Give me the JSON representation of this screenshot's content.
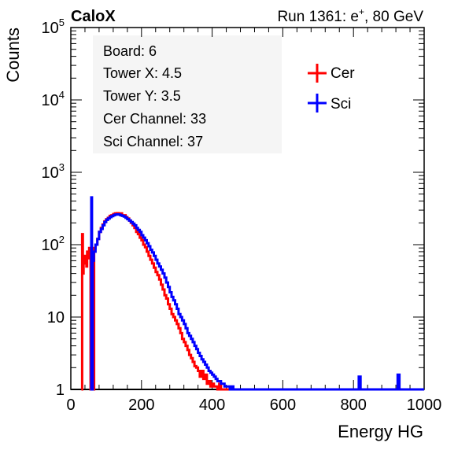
{
  "header": {
    "experiment": "CaloX",
    "run_prefix": "Run 1361: e",
    "run_superscript": "+",
    "run_suffix": ", 80 GeV"
  },
  "info_box": {
    "lines": [
      "Board: 6",
      "Tower X: 4.5",
      "Tower Y: 3.5",
      "Cer Channel: 33",
      "Sci Channel: 37"
    ]
  },
  "legend": {
    "entries": [
      {
        "label": "Cer",
        "color": "#ff0000"
      },
      {
        "label": "Sci",
        "color": "#0000ff"
      }
    ]
  },
  "chart_data": {
    "type": "line",
    "xlabel": "Energy HG",
    "ylabel": "Counts",
    "xlim": [
      0,
      1000
    ],
    "ylim": [
      1,
      100000
    ],
    "yscale": "log",
    "x_ticks": [
      0,
      200,
      400,
      600,
      800,
      1000
    ],
    "y_ticks": [
      {
        "value": 1,
        "base": "1",
        "exp": ""
      },
      {
        "value": 10,
        "base": "10",
        "exp": ""
      },
      {
        "value": 100,
        "base": "10",
        "exp": "2"
      },
      {
        "value": 1000,
        "base": "10",
        "exp": "3"
      },
      {
        "value": 10000,
        "base": "10",
        "exp": "4"
      },
      {
        "value": 100000,
        "base": "10",
        "exp": "5"
      }
    ],
    "series": [
      {
        "name": "Cer",
        "color": "#ff0000",
        "points": [
          [
            30,
            1
          ],
          [
            31,
            1
          ],
          [
            32,
            140
          ],
          [
            34,
            40
          ],
          [
            36,
            60
          ],
          [
            38,
            55
          ],
          [
            40,
            70
          ],
          [
            42,
            60
          ],
          [
            44,
            50
          ],
          [
            46,
            80
          ],
          [
            48,
            65
          ],
          [
            50,
            75
          ],
          [
            52,
            90
          ],
          [
            54,
            70
          ],
          [
            56,
            1
          ],
          [
            58,
            1
          ],
          [
            60,
            1
          ],
          [
            62,
            1
          ],
          [
            64,
            1
          ],
          [
            66,
            90
          ],
          [
            70,
            100
          ],
          [
            75,
            120
          ],
          [
            80,
            150
          ],
          [
            85,
            170
          ],
          [
            90,
            190
          ],
          [
            95,
            210
          ],
          [
            100,
            225
          ],
          [
            105,
            235
          ],
          [
            110,
            250
          ],
          [
            115,
            255
          ],
          [
            120,
            265
          ],
          [
            125,
            270
          ],
          [
            130,
            272
          ],
          [
            135,
            265
          ],
          [
            140,
            270
          ],
          [
            145,
            255
          ],
          [
            150,
            255
          ],
          [
            155,
            240
          ],
          [
            160,
            230
          ],
          [
            165,
            215
          ],
          [
            170,
            200
          ],
          [
            175,
            185
          ],
          [
            180,
            170
          ],
          [
            185,
            150
          ],
          [
            190,
            140
          ],
          [
            195,
            125
          ],
          [
            200,
            115
          ],
          [
            205,
            100
          ],
          [
            210,
            92
          ],
          [
            215,
            80
          ],
          [
            220,
            70
          ],
          [
            225,
            62
          ],
          [
            230,
            55
          ],
          [
            235,
            48
          ],
          [
            240,
            42
          ],
          [
            245,
            38
          ],
          [
            250,
            33
          ],
          [
            255,
            28
          ],
          [
            260,
            24
          ],
          [
            265,
            20
          ],
          [
            270,
            18
          ],
          [
            275,
            15
          ],
          [
            280,
            13
          ],
          [
            285,
            11
          ],
          [
            290,
            10
          ],
          [
            295,
            9
          ],
          [
            300,
            8
          ],
          [
            305,
            7
          ],
          [
            310,
            6
          ],
          [
            315,
            5
          ],
          [
            320,
            4.5
          ],
          [
            325,
            4
          ],
          [
            330,
            3.5
          ],
          [
            335,
            3
          ],
          [
            340,
            2.7
          ],
          [
            345,
            2.4
          ],
          [
            350,
            2.1
          ],
          [
            355,
            2
          ],
          [
            360,
            1.8
          ],
          [
            365,
            1.5
          ],
          [
            370,
            1.8
          ],
          [
            375,
            1.4
          ],
          [
            380,
            1.6
          ],
          [
            385,
            1.2
          ],
          [
            390,
            1.3
          ],
          [
            395,
            1.1
          ],
          [
            400,
            1.2
          ],
          [
            405,
            1.1
          ],
          [
            410,
            1.1
          ],
          [
            415,
            1
          ],
          [
            420,
            1.2
          ],
          [
            425,
            1
          ],
          [
            430,
            1
          ],
          [
            435,
            1
          ],
          [
            440,
            1
          ],
          [
            445,
            1
          ],
          [
            450,
            1
          ],
          [
            455,
            1
          ],
          [
            460,
            1
          ],
          [
            465,
            1
          ],
          [
            470,
            1
          ],
          [
            475,
            1
          ],
          [
            480,
            1
          ]
        ]
      },
      {
        "name": "Sci",
        "color": "#0000ff",
        "points": [
          [
            55,
            1
          ],
          [
            58,
            450
          ],
          [
            60,
            1
          ],
          [
            62,
            60
          ],
          [
            65,
            80
          ],
          [
            70,
            100
          ],
          [
            75,
            120
          ],
          [
            80,
            150
          ],
          [
            85,
            165
          ],
          [
            90,
            185
          ],
          [
            95,
            205
          ],
          [
            100,
            220
          ],
          [
            105,
            230
          ],
          [
            110,
            240
          ],
          [
            115,
            248
          ],
          [
            120,
            255
          ],
          [
            125,
            260
          ],
          [
            130,
            262
          ],
          [
            135,
            260
          ],
          [
            140,
            255
          ],
          [
            145,
            250
          ],
          [
            150,
            245
          ],
          [
            155,
            235
          ],
          [
            160,
            225
          ],
          [
            165,
            215
          ],
          [
            170,
            205
          ],
          [
            175,
            195
          ],
          [
            180,
            185
          ],
          [
            185,
            170
          ],
          [
            190,
            160
          ],
          [
            195,
            150
          ],
          [
            200,
            135
          ],
          [
            205,
            125
          ],
          [
            210,
            115
          ],
          [
            215,
            105
          ],
          [
            220,
            95
          ],
          [
            225,
            85
          ],
          [
            230,
            78
          ],
          [
            235,
            70
          ],
          [
            240,
            62
          ],
          [
            245,
            55
          ],
          [
            250,
            50
          ],
          [
            255,
            45
          ],
          [
            260,
            40
          ],
          [
            265,
            35
          ],
          [
            270,
            30
          ],
          [
            275,
            26
          ],
          [
            280,
            22
          ],
          [
            285,
            19
          ],
          [
            290,
            17
          ],
          [
            295,
            15
          ],
          [
            300,
            13
          ],
          [
            305,
            11
          ],
          [
            310,
            10
          ],
          [
            315,
            9
          ],
          [
            320,
            8
          ],
          [
            325,
            7
          ],
          [
            330,
            6
          ],
          [
            335,
            5.5
          ],
          [
            340,
            5
          ],
          [
            345,
            4.5
          ],
          [
            350,
            4
          ],
          [
            355,
            3.6
          ],
          [
            360,
            3.2
          ],
          [
            365,
            2.9
          ],
          [
            370,
            2.6
          ],
          [
            375,
            2.4
          ],
          [
            380,
            2.2
          ],
          [
            385,
            2
          ],
          [
            390,
            1.8
          ],
          [
            395,
            1.7
          ],
          [
            400,
            1.6
          ],
          [
            405,
            1.5
          ],
          [
            410,
            1.4
          ],
          [
            415,
            1.3
          ],
          [
            420,
            1.3
          ],
          [
            425,
            1.2
          ],
          [
            430,
            1.2
          ],
          [
            435,
            1.1
          ],
          [
            440,
            1.1
          ],
          [
            445,
            1.1
          ],
          [
            450,
            1
          ],
          [
            455,
            1.1
          ],
          [
            460,
            1
          ],
          [
            465,
            1
          ],
          [
            470,
            1
          ],
          [
            475,
            1
          ],
          [
            480,
            1
          ],
          [
            485,
            1
          ],
          [
            490,
            1
          ],
          [
            500,
            1
          ],
          [
            520,
            1
          ],
          [
            540,
            1
          ],
          [
            560,
            1
          ],
          [
            580,
            1
          ],
          [
            600,
            1
          ],
          [
            620,
            1
          ],
          [
            640,
            1
          ],
          [
            660,
            1
          ],
          [
            680,
            1
          ],
          [
            700,
            1
          ],
          [
            800,
            1
          ],
          [
            815,
            1.5
          ],
          [
            820,
            1
          ],
          [
            920,
            1
          ],
          [
            925,
            1.6
          ],
          [
            930,
            1
          ],
          [
            1000,
            1
          ]
        ]
      }
    ]
  }
}
